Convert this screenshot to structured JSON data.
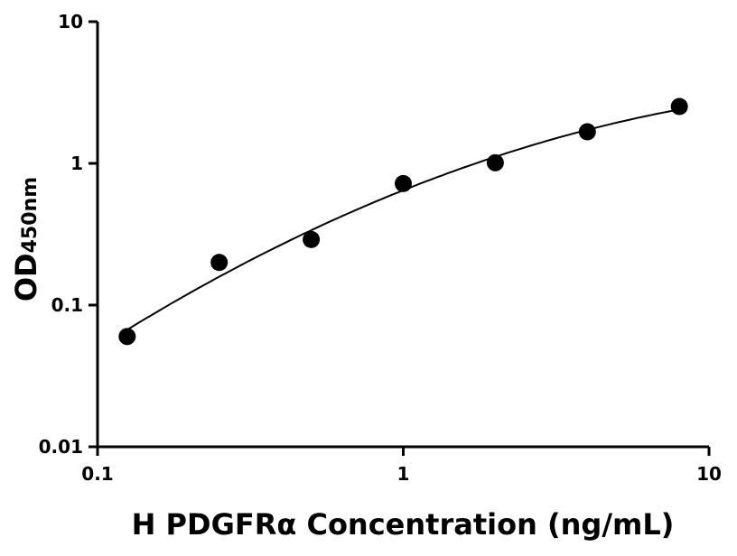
{
  "chart_data": {
    "type": "scatter",
    "title": "",
    "xlabel": "H PDGFRα Concentration (ng/mL)",
    "ylabel_main": "OD",
    "ylabel_sub": "450nm",
    "x_scale": "log",
    "y_scale": "log",
    "xlim": [
      0.1,
      10
    ],
    "ylim": [
      0.01,
      10
    ],
    "x_ticks": [
      0.1,
      1,
      10
    ],
    "x_tick_labels": [
      "0.1",
      "1",
      "10"
    ],
    "y_ticks": [
      0.01,
      0.1,
      1,
      10
    ],
    "y_tick_labels": [
      "0.01",
      "0.1",
      "1",
      "10"
    ],
    "grid": false,
    "fit_curve": true,
    "marker_color": "#000000",
    "x": [
      0.125,
      0.25,
      0.5,
      1,
      2,
      4,
      8
    ],
    "y": [
      0.06,
      0.2,
      0.29,
      0.72,
      1.01,
      1.67,
      2.52
    ]
  }
}
